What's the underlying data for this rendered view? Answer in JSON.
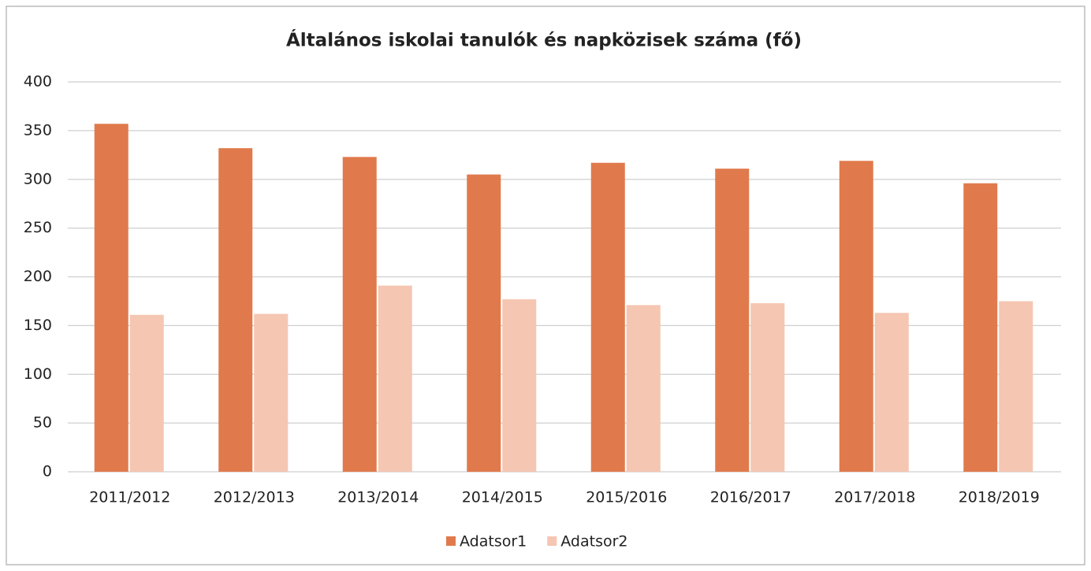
{
  "chart_data": {
    "type": "bar",
    "title": "Általános iskolai tanulók és napközisek száma (fő)",
    "categories": [
      "2011/2012",
      "2012/2013",
      "2013/2014",
      "2014/2015",
      "2015/2016",
      "2016/2017",
      "2017/2018",
      "2018/2019"
    ],
    "series": [
      {
        "name": "Adatsor1",
        "color": "#e07a4c",
        "values": [
          357,
          332,
          323,
          305,
          317,
          311,
          319,
          296
        ]
      },
      {
        "name": "Adatsor2",
        "color": "#f5c6b2",
        "values": [
          161,
          162,
          191,
          177,
          171,
          173,
          163,
          175
        ]
      }
    ],
    "ylim": [
      0,
      400
    ],
    "yticks": [
      0,
      50,
      100,
      150,
      200,
      250,
      300,
      350,
      400
    ],
    "grid": true,
    "legend": "bottom"
  }
}
